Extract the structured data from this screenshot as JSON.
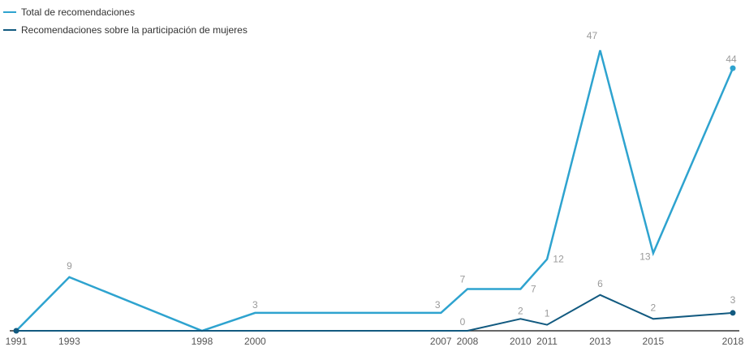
{
  "chart_data": {
    "type": "line",
    "x": [
      1991,
      1993,
      1998,
      2000,
      2007,
      2008,
      2010,
      2011,
      2013,
      2015,
      2018
    ],
    "xticks": [
      "1991",
      "1993",
      "1998",
      "2000",
      "2007",
      "2008",
      "2010",
      "2011",
      "2013",
      "2015",
      "2018"
    ],
    "ylim": [
      0,
      50
    ],
    "grid": false,
    "legend": "top-left",
    "series": [
      {
        "name": "Total de recomendaciones",
        "color": "#2ea3cf",
        "x": [
          1991,
          1993,
          1998,
          2000,
          2007,
          2008,
          2010,
          2011,
          2013,
          2015,
          2018
        ],
        "values": [
          0,
          9,
          0,
          3,
          3,
          7,
          7,
          12,
          47,
          13,
          44
        ],
        "labels": [
          "",
          "9",
          "",
          "3",
          "3",
          "7",
          "7",
          "12",
          "47",
          "13",
          "44"
        ]
      },
      {
        "name": "Recomendaciones sobre la participación de mujeres",
        "color": "#125a80",
        "x": [
          1991,
          1993,
          1998,
          2000,
          2007,
          2008,
          2010,
          2011,
          2013,
          2015,
          2018
        ],
        "values": [
          0,
          0,
          0,
          0,
          0,
          0,
          2,
          1,
          6,
          2,
          3
        ],
        "labels": [
          "",
          "",
          "",
          "",
          "",
          "0",
          "2",
          "1",
          "6",
          "2",
          "3"
        ]
      }
    ]
  }
}
